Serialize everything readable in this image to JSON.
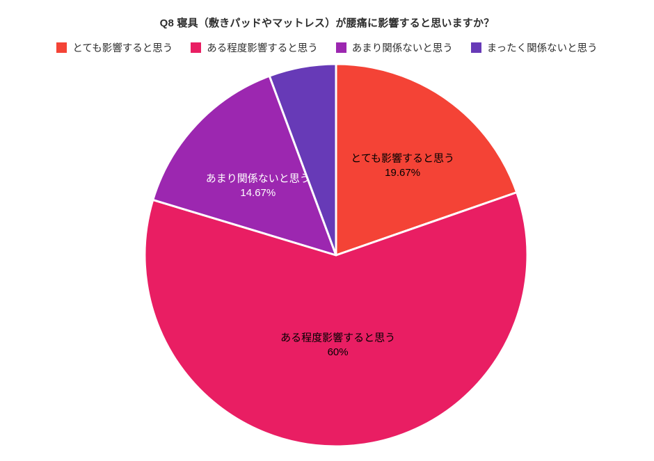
{
  "chart_data": {
    "type": "pie",
    "title": "Q8 寝具（敷きパッドやマットレス）が腰痛に影響すると思いますか？",
    "legend_position": "top",
    "start_angle_deg": 0,
    "direction": "clockwise",
    "background_color": "#ffffff",
    "slice_gap_color": "#ffffff",
    "slices": [
      {
        "label": "とても影響すると思う",
        "value": 19.67,
        "display": "19.67%",
        "color": "#F44336",
        "label_color": "#000000",
        "show_label": true,
        "label_radius": 0.6
      },
      {
        "label": "ある程度影響すると思う",
        "value": 60,
        "display": "60%",
        "color": "#E91E63",
        "label_color": "#000000",
        "show_label": true,
        "label_radius": 0.45
      },
      {
        "label": "あまり関係ないと思う",
        "value": 14.67,
        "display": "14.67%",
        "color": "#9C27B0",
        "label_color": "#ffffff",
        "show_label": true,
        "label_radius": 0.56
      },
      {
        "label": "まったく関係ないと思う",
        "value": 5.66,
        "display": "",
        "color": "#673AB7",
        "label_color": "#ffffff",
        "show_label": false,
        "label_radius": 0.6
      }
    ]
  }
}
